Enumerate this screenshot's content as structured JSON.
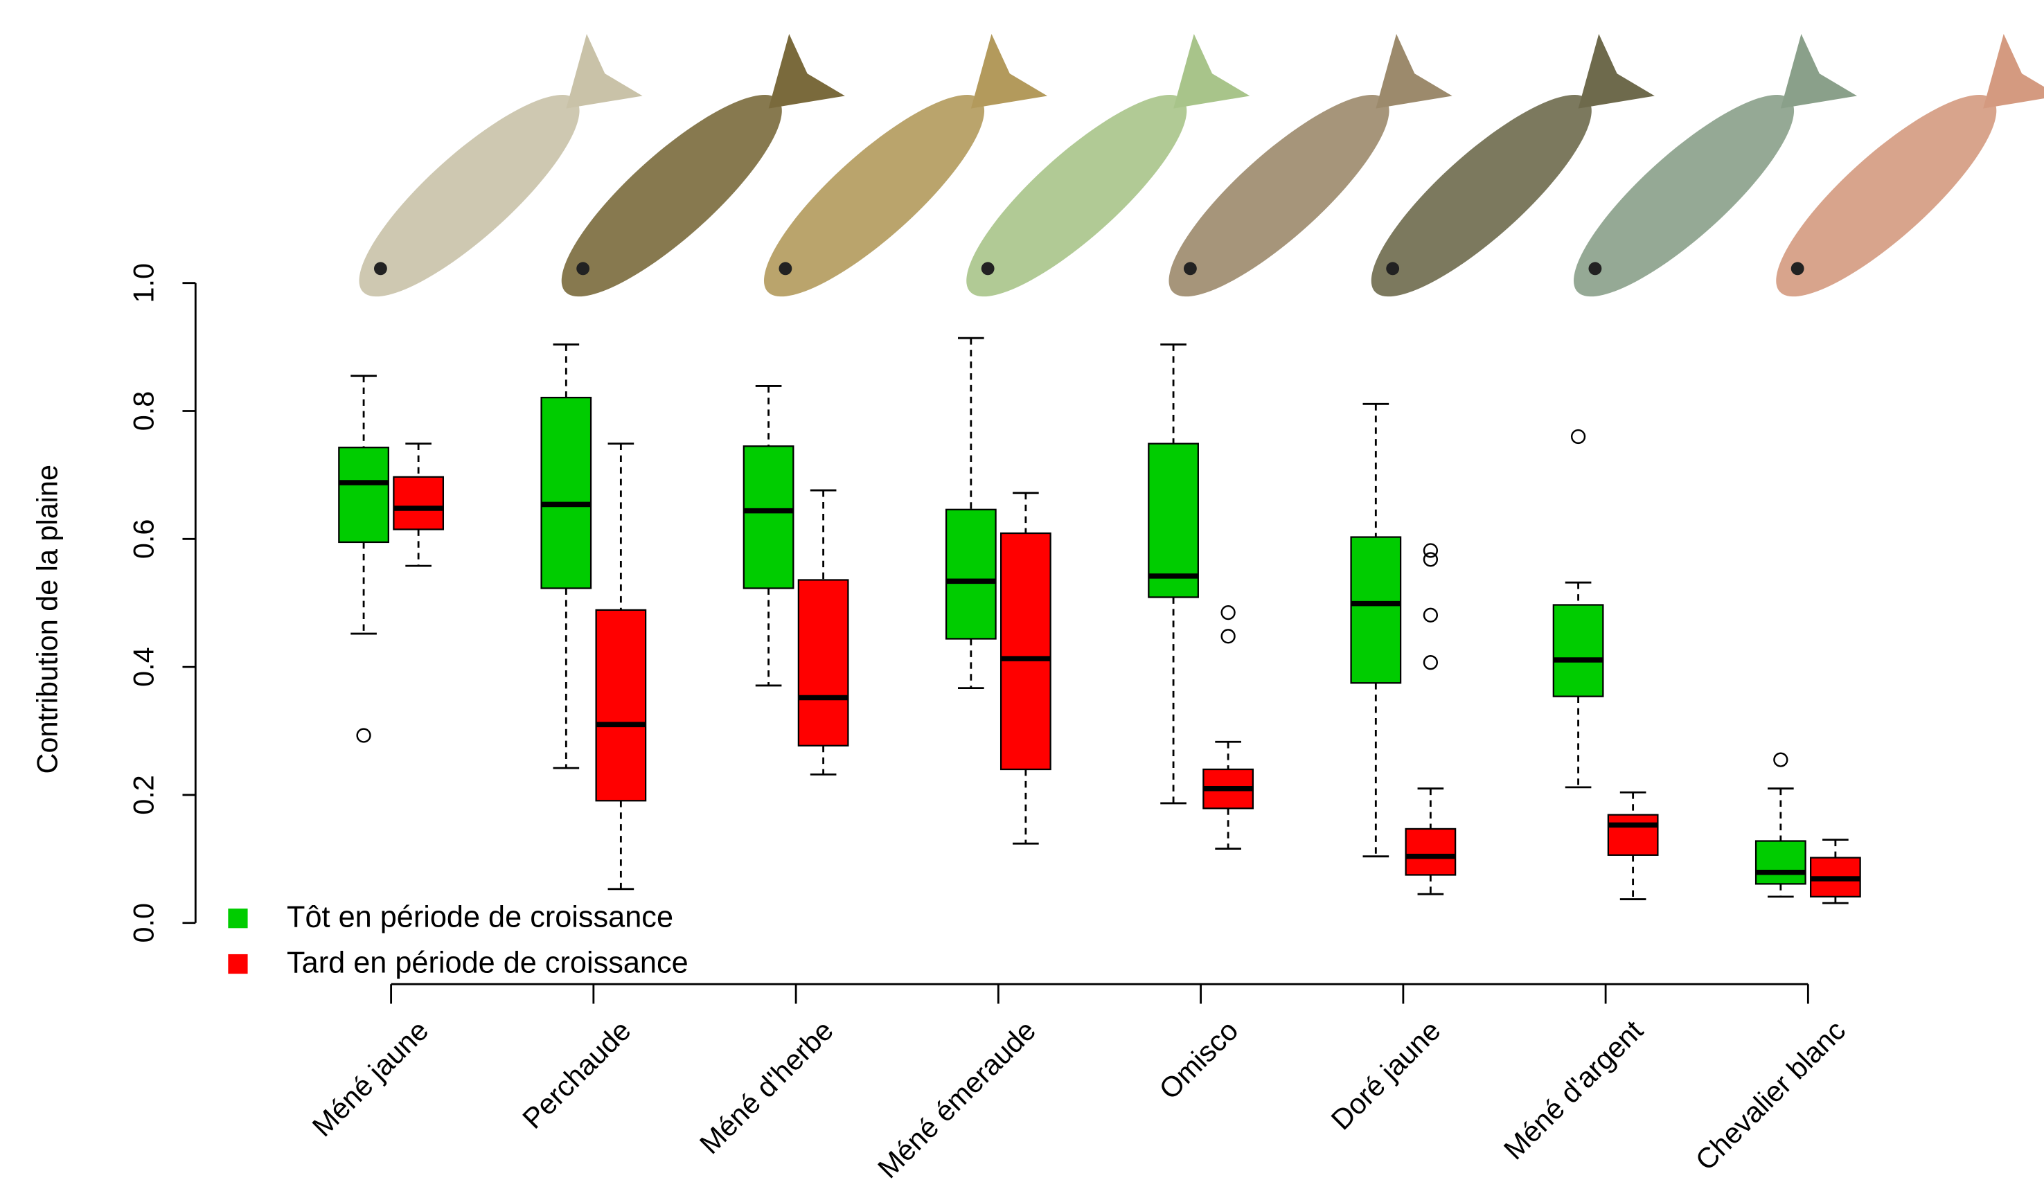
{
  "chart_data": {
    "type": "boxplot",
    "y_label": "Contribution de la plaine",
    "categories": [
      "Méné jaune",
      "Perchaude",
      "Méné d'herbe",
      "Méné émeraude",
      "Omisco",
      "Doré jaune",
      "Méné d'argent",
      "Chevalier blanc"
    ],
    "ylim": [
      0,
      1
    ],
    "yticks": [
      {
        "value": 0,
        "label": "0.0"
      },
      0.2,
      0.4,
      0.6,
      0.8,
      {
        "value": 1,
        "label": "1.0"
      }
    ],
    "legend": "bottom-left",
    "series": [
      {
        "name": "Tôt en période de croissance",
        "color": "#00cc00",
        "boxes": [
          {
            "whislo": 0.452,
            "q1": 0.595,
            "med": 0.688,
            "q3": 0.743,
            "whishi": 0.855,
            "fliers": [
              0.293
            ]
          },
          {
            "whislo": 0.242,
            "q1": 0.523,
            "med": 0.654,
            "q3": 0.821,
            "whishi": 0.904
          },
          {
            "whislo": 0.371,
            "q1": 0.523,
            "med": 0.644,
            "q3": 0.745,
            "whishi": 0.839
          },
          {
            "whislo": 0.367,
            "q1": 0.444,
            "med": 0.534,
            "q3": 0.646,
            "whishi": 0.914
          },
          {
            "whislo": 0.187,
            "q1": 0.509,
            "med": 0.542,
            "q3": 0.749,
            "whishi": 0.904
          },
          {
            "whislo": 0.104,
            "q1": 0.375,
            "med": 0.499,
            "q3": 0.603,
            "whishi": 0.811
          },
          {
            "whislo": 0.212,
            "q1": 0.354,
            "med": 0.411,
            "q3": 0.497,
            "whishi": 0.532,
            "fliers": [
              0.76
            ]
          },
          {
            "whislo": 0.041,
            "q1": 0.061,
            "med": 0.079,
            "q3": 0.128,
            "whishi": 0.21,
            "fliers": [
              0.255
            ]
          }
        ]
      },
      {
        "name": "Tard en période de croissance",
        "color": "#ff0000",
        "boxes": [
          {
            "whislo": 0.558,
            "q1": 0.615,
            "med": 0.648,
            "q3": 0.697,
            "whishi": 0.749
          },
          {
            "whislo": 0.053,
            "q1": 0.191,
            "med": 0.31,
            "q3": 0.489,
            "whishi": 0.749
          },
          {
            "whislo": 0.232,
            "q1": 0.277,
            "med": 0.352,
            "q3": 0.536,
            "whishi": 0.676
          },
          {
            "whislo": 0.124,
            "q1": 0.24,
            "med": 0.413,
            "q3": 0.609,
            "whishi": 0.672
          },
          {
            "whislo": 0.116,
            "q1": 0.179,
            "med": 0.21,
            "q3": 0.24,
            "whishi": 0.283,
            "fliers": [
              0.485,
              0.448
            ]
          },
          {
            "whislo": 0.045,
            "q1": 0.075,
            "med": 0.104,
            "q3": 0.147,
            "whishi": 0.21,
            "fliers": [
              0.582,
              0.568,
              0.481,
              0.407
            ]
          },
          {
            "whislo": 0.037,
            "q1": 0.106,
            "med": 0.153,
            "q3": 0.169,
            "whishi": 0.204
          },
          {
            "whislo": 0.031,
            "q1": 0.041,
            "med": 0.069,
            "q3": 0.102,
            "whishi": 0.13
          }
        ]
      }
    ]
  }
}
